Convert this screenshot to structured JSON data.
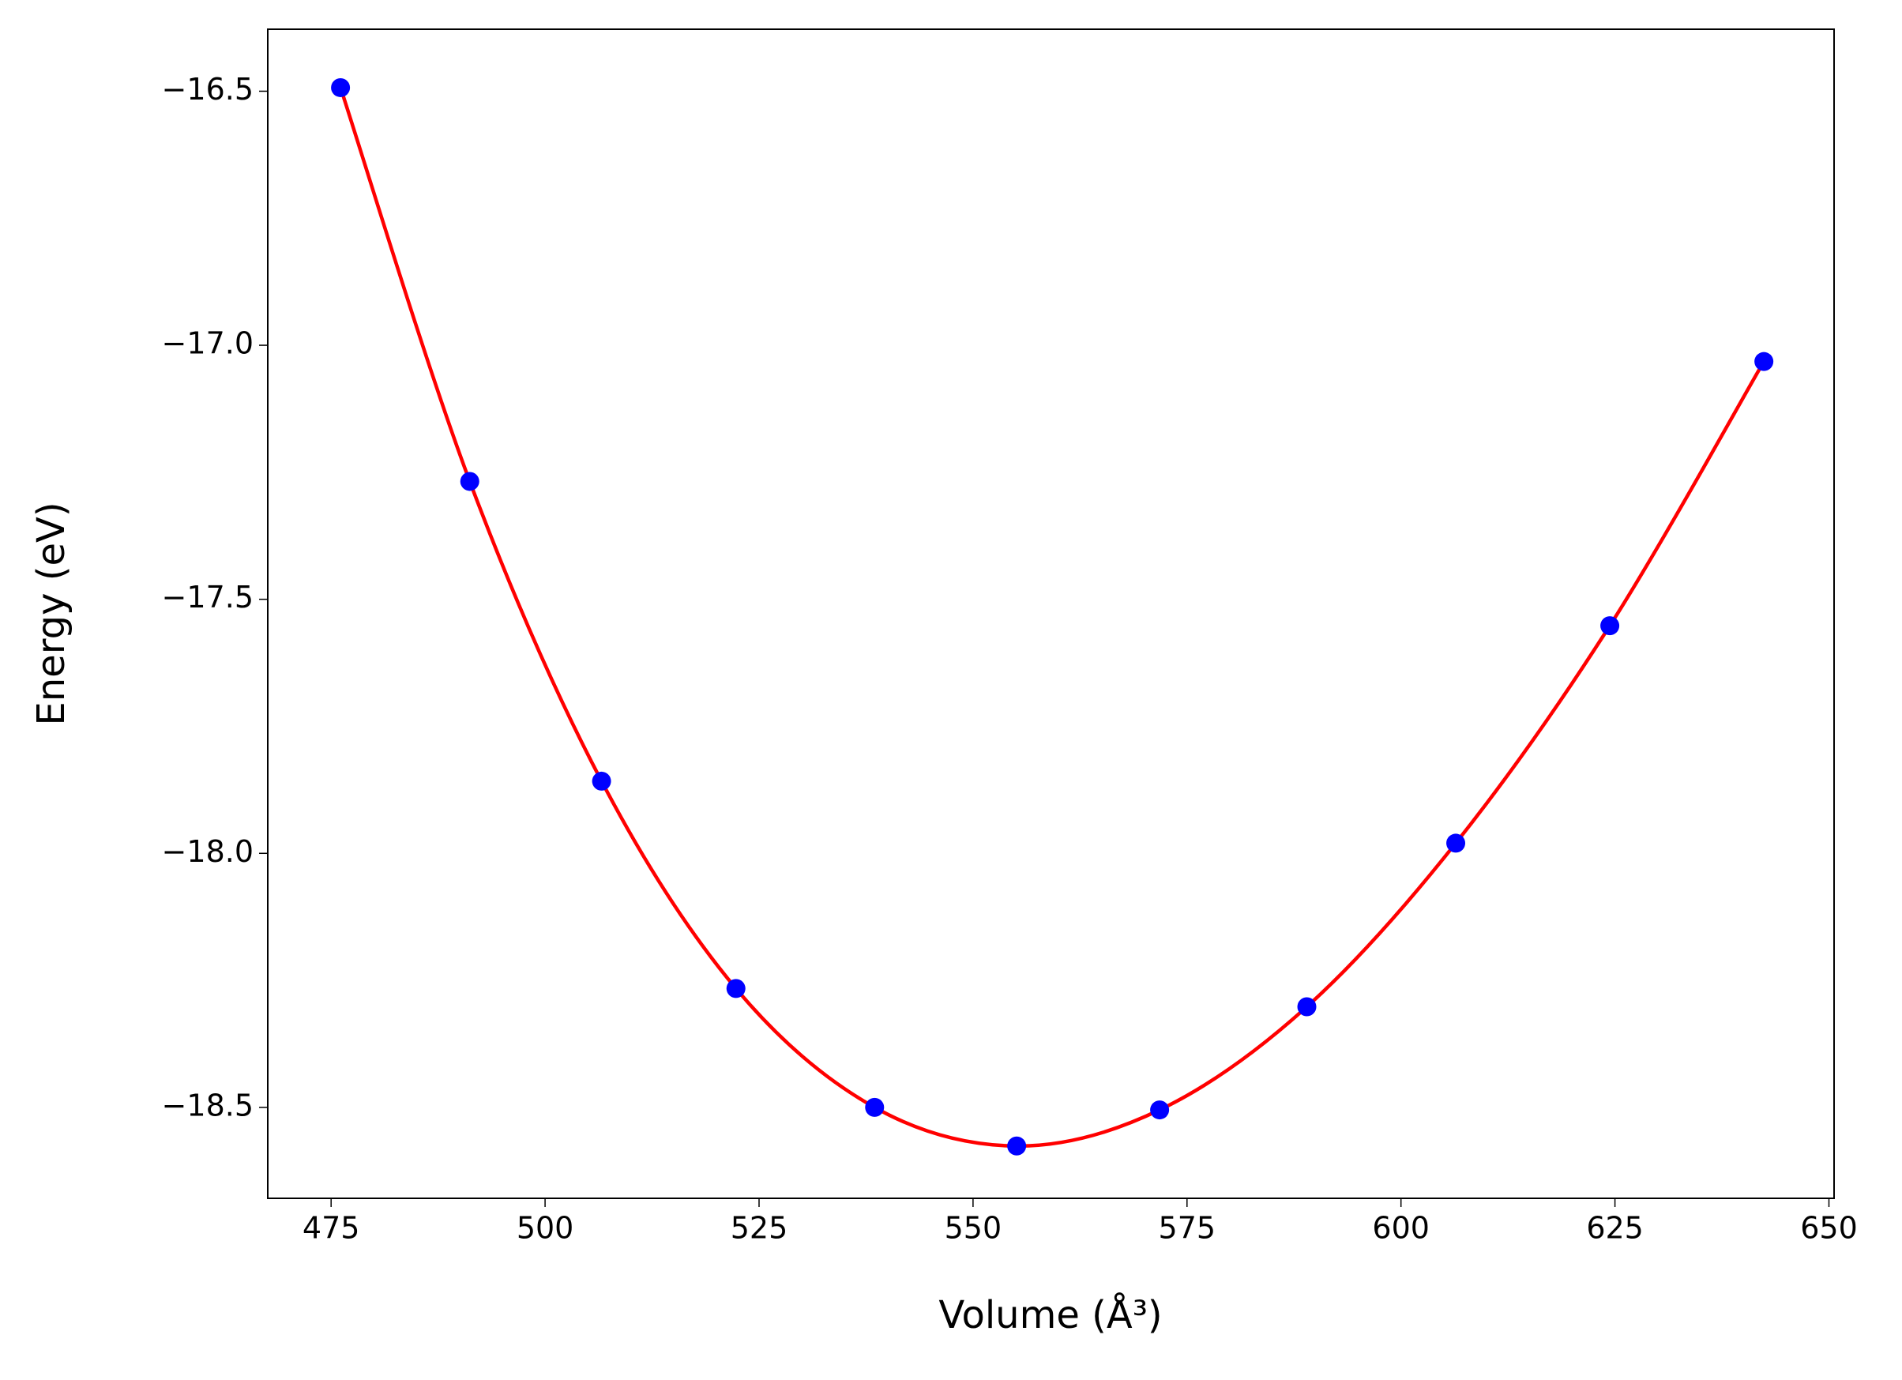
{
  "chart_data": {
    "type": "line",
    "x_label": "Volume (Å³)",
    "y_label": "Energy (eV)",
    "x": [
      476.1,
      491.2,
      506.6,
      522.3,
      538.5,
      555.1,
      571.8,
      589.0,
      606.4,
      624.4,
      642.4
    ],
    "series": [
      {
        "type": "line",
        "color": "#ff0000",
        "values": [
          -16.493,
          -17.268,
          -17.858,
          -18.266,
          -18.5,
          -18.576,
          -18.505,
          -18.302,
          -17.98,
          -17.552,
          -17.032
        ]
      },
      {
        "type": "scatter",
        "color": "#0000ff",
        "values": [
          -16.493,
          -17.268,
          -17.858,
          -18.266,
          -18.5,
          -18.576,
          -18.505,
          -18.302,
          -17.98,
          -17.552,
          -17.032
        ]
      }
    ],
    "xlim": [
      467.6,
      650.6
    ],
    "ylim": [
      -18.679,
      -16.378
    ],
    "xticks": [
      475,
      500,
      525,
      550,
      575,
      600,
      625,
      650
    ],
    "yticks": [
      {
        "value": -16.5,
        "label": "−16.5"
      },
      {
        "value": -17.0,
        "label": "−17.0"
      },
      {
        "value": -17.5,
        "label": "−17.5"
      },
      {
        "value": -18.0,
        "label": "−18.0"
      },
      {
        "value": -18.5,
        "label": "−18.5"
      }
    ],
    "grid": false
  }
}
